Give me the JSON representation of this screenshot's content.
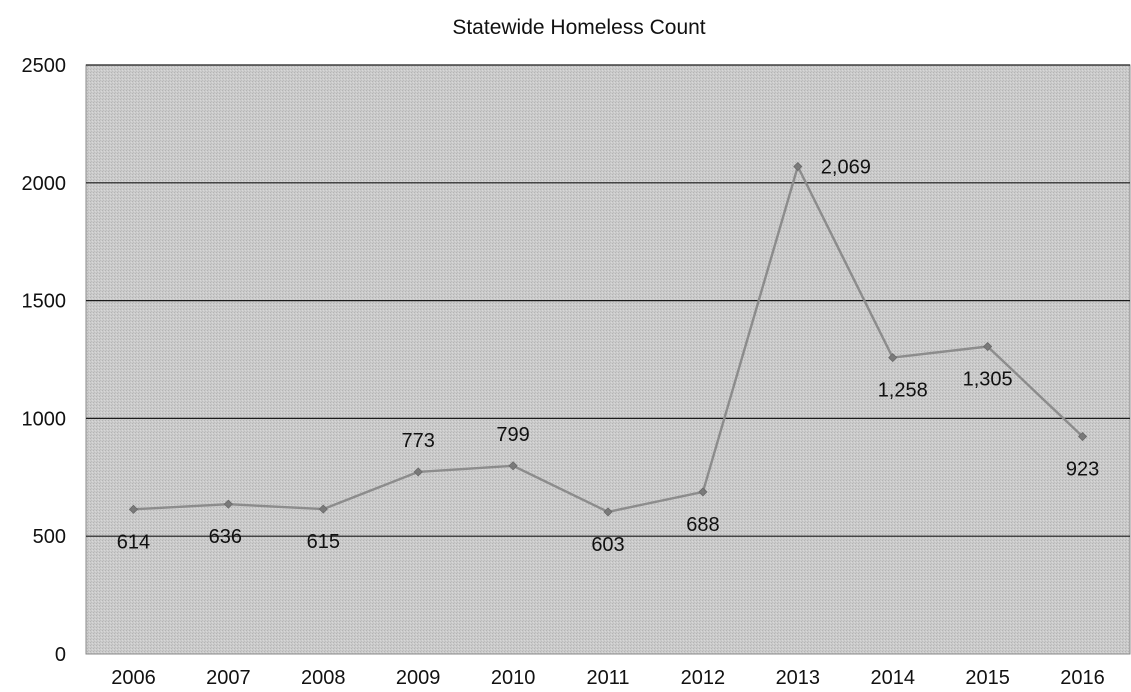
{
  "chart_data": {
    "type": "line",
    "title": "Statewide Homeless Count",
    "categories": [
      "2006",
      "2007",
      "2008",
      "2009",
      "2010",
      "2011",
      "2012",
      "2013",
      "2014",
      "2015",
      "2016"
    ],
    "series": [
      {
        "values": [
          614,
          636,
          615,
          773,
          799,
          603,
          688,
          2069,
          1258,
          1305,
          923
        ],
        "labels": [
          "614",
          "636",
          "615",
          "773",
          "799",
          "603",
          "688",
          "2,069",
          "1,258",
          "1,305",
          "923"
        ]
      }
    ],
    "y_ticks": [
      "0",
      "500",
      "1000",
      "1500",
      "2000",
      "2500"
    ],
    "ylim": [
      0,
      2500
    ],
    "xlabel": "",
    "ylabel": "",
    "grid": true,
    "legend": "none",
    "colors": {
      "plot_background": "#c8c8c8",
      "gridline": "#1a1a1a",
      "series_line": "#8c8c8c",
      "marker": "#7a7a7a",
      "text": "#111111"
    }
  }
}
